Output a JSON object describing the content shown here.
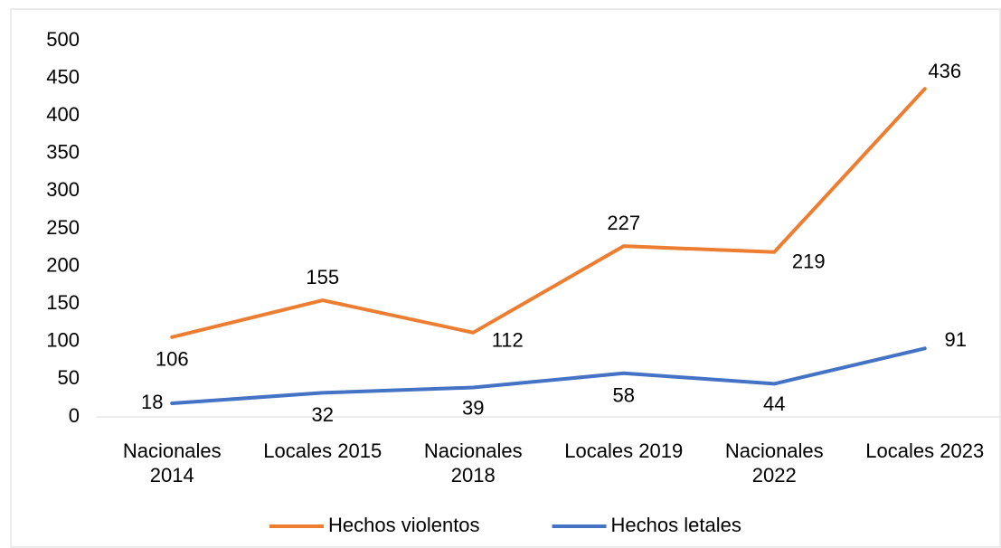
{
  "chart_data": {
    "type": "line",
    "categories": [
      "Nacionales 2014",
      "Locales 2015",
      "Nacionales 2018",
      "Locales 2019",
      "Nacionales 2022",
      "Locales 2023"
    ],
    "series": [
      {
        "name": "Hechos violentos",
        "color": "#ED7D31",
        "values": [
          106,
          155,
          112,
          227,
          219,
          436
        ]
      },
      {
        "name": "Hechos letales",
        "color": "#4472C4",
        "values": [
          18,
          32,
          39,
          58,
          44,
          91
        ]
      }
    ],
    "ylim": [
      0,
      500
    ],
    "yticks": [
      0,
      50,
      100,
      150,
      200,
      250,
      300,
      350,
      400,
      450,
      500
    ],
    "grid": false,
    "legend": "bottom"
  }
}
